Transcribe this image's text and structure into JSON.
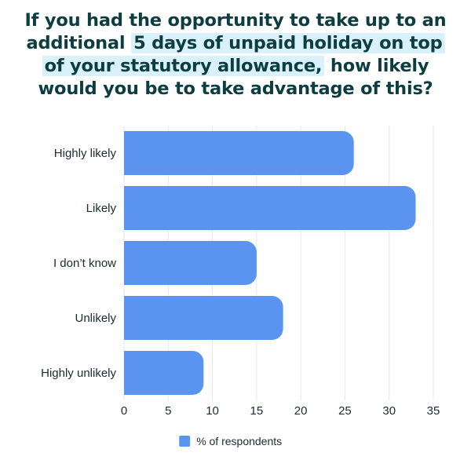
{
  "title": {
    "line1": "If you had the opportunity to take up to an",
    "line2_pre": "additional ",
    "line2_hl": "5 days of unpaid holiday on top",
    "line3_hl": "of your statutory allowance,",
    "line3_post": " how likely",
    "line4": "would you be to take advantage of this?"
  },
  "colors": {
    "bar": "#5b93f0",
    "title": "#0c3d40",
    "highlight": "#d9f1fa",
    "grid": "#e6e6e6"
  },
  "chart_data": {
    "type": "bar",
    "orientation": "horizontal",
    "categories": [
      "Highly likely",
      "Likely",
      "I don’t know",
      "Unlikely",
      "Highly unlikely"
    ],
    "series": [
      {
        "name": "% of respondents",
        "values": [
          26,
          33,
          15,
          18,
          9
        ]
      }
    ],
    "xlim": [
      0,
      35
    ],
    "xticks": [
      0,
      5,
      10,
      15,
      20,
      25,
      30,
      35
    ],
    "grid": true,
    "legend": "bottom"
  }
}
